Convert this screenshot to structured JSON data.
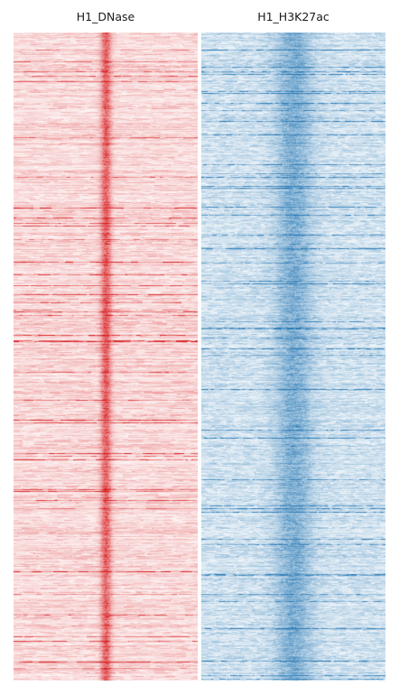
{
  "chart_data": [
    {
      "type": "heatmap",
      "title": "H1_DNase",
      "xlabel": "",
      "ylabel": "",
      "colormap": "Reds",
      "color": "#d7191c",
      "profile": "sharp central enrichment; signal strongest at the middle column",
      "legend": "none",
      "grid": false
    },
    {
      "type": "heatmap",
      "title": "H1_H3K27ac",
      "xlabel": "",
      "ylabel": "",
      "colormap": "Blues",
      "color": "#2c7bb6",
      "profile": "broad central enrichment; signal spread around the middle column",
      "legend": "none",
      "grid": false
    }
  ]
}
